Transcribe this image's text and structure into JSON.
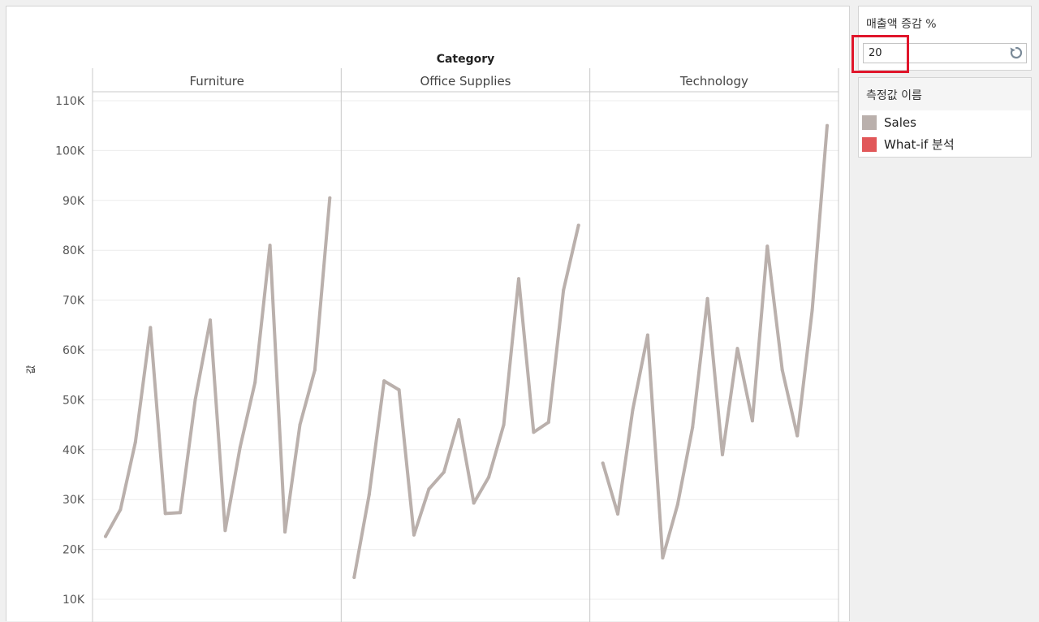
{
  "parameter": {
    "title": "매출액 증감 %",
    "value": "20",
    "reset_icon": "reset-icon"
  },
  "legend": {
    "title": "측정값 이름",
    "items": [
      {
        "label": "Sales",
        "color": "#bab0ac"
      },
      {
        "label": "What-if 분석",
        "color": "#e15759"
      }
    ]
  },
  "chart_data": {
    "type": "line",
    "column_header": "Category",
    "ylabel": "값",
    "ylim": [
      0,
      115000
    ],
    "yticks": [
      10000,
      20000,
      30000,
      40000,
      50000,
      60000,
      70000,
      80000,
      90000,
      100000,
      110000
    ],
    "ytick_labels": [
      "10K",
      "20K",
      "30K",
      "40K",
      "50K",
      "60K",
      "70K",
      "80K",
      "90K",
      "100K",
      "110K"
    ],
    "grid": true,
    "series_name": "Sales",
    "series_color": "#bab0ac",
    "panels": [
      {
        "name": "Furniture",
        "values": [
          22600,
          28000,
          41500,
          64500,
          27200,
          27400,
          50000,
          66000,
          23800,
          40500,
          53500,
          81000,
          23500,
          45000,
          56000,
          90500
        ]
      },
      {
        "name": "Office Supplies",
        "values": [
          14400,
          31000,
          53800,
          52000,
          22900,
          32100,
          35500,
          46000,
          29300,
          34500,
          45000,
          74300,
          43500,
          45500,
          72000,
          85000
        ]
      },
      {
        "name": "Technology",
        "values": [
          37300,
          27100,
          48000,
          63000,
          18300,
          29000,
          44500,
          70300,
          39000,
          60300,
          45800,
          80800,
          56000,
          42800,
          68000,
          105000
        ]
      }
    ]
  }
}
